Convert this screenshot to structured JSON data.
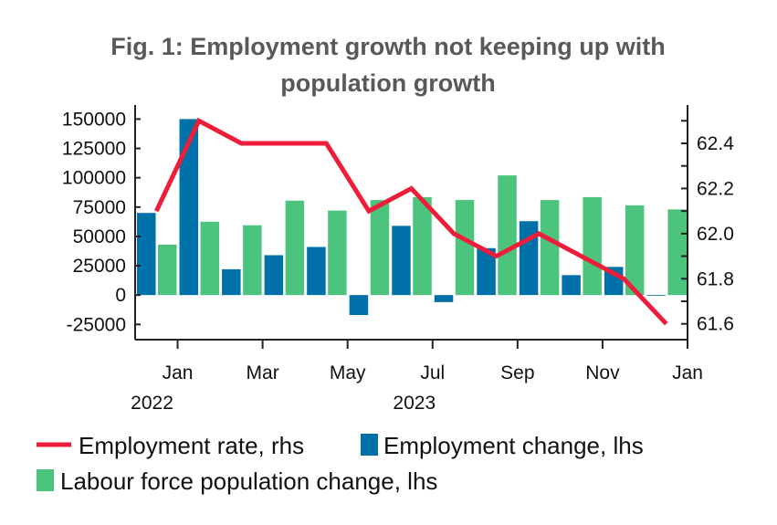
{
  "chart_data": {
    "type": "bar+line",
    "title_lines": [
      "Fig. 1: Employment growth not keeping up with",
      "population growth"
    ],
    "categories": [
      "Dec 2022",
      "Jan 2023",
      "Feb 2023",
      "Mar 2023",
      "Apr 2023",
      "May 2023",
      "Jun 2023",
      "Jul 2023",
      "Aug 2023",
      "Sep 2023",
      "Oct 2023",
      "Nov 2023",
      "Dec 2023"
    ],
    "x_tick_labels": [
      "Jan",
      "Mar",
      "May",
      "Jul",
      "Sep",
      "Nov",
      "Jan"
    ],
    "x_year_labels": [
      "2022",
      "2023"
    ],
    "left_axis": {
      "ylim": [
        -38000,
        162000
      ],
      "ticks": [
        150000,
        125000,
        100000,
        75000,
        50000,
        25000,
        0,
        -25000
      ],
      "tick_labels": [
        "150000",
        "125000",
        "100000",
        "75000",
        "50000",
        "25000",
        "0",
        "-25000"
      ]
    },
    "right_axis": {
      "ylim": [
        61.53,
        62.57
      ],
      "ticks": [
        62.4,
        62.2,
        62.0,
        61.8,
        61.6
      ],
      "tick_labels": [
        "62.4",
        "62.2",
        "62.0",
        "61.8",
        "61.6"
      ]
    },
    "series": [
      {
        "name": "Employment rate, rhs",
        "kind": "line",
        "axis": "right",
        "color": "#ee1d3a",
        "values": [
          62.1,
          62.5,
          62.4,
          62.4,
          62.4,
          62.1,
          62.2,
          62.0,
          61.9,
          62.0,
          61.9,
          61.8,
          61.6
        ]
      },
      {
        "name": "Employment change, lhs",
        "kind": "bar",
        "axis": "left",
        "color": "#0071a8",
        "values": [
          70000,
          150000,
          22000,
          34000,
          41000,
          -17000,
          59000,
          -6000,
          40000,
          63000,
          17000,
          24000,
          0
        ]
      },
      {
        "name": "Labour force population change, lhs",
        "kind": "bar",
        "axis": "left",
        "color": "#4dc47d",
        "values": [
          43000,
          62500,
          59500,
          80500,
          72000,
          81000,
          83500,
          81000,
          102000,
          81000,
          83500,
          76500,
          73000
        ]
      }
    ],
    "grid": false,
    "legend_placement": "bottom"
  }
}
